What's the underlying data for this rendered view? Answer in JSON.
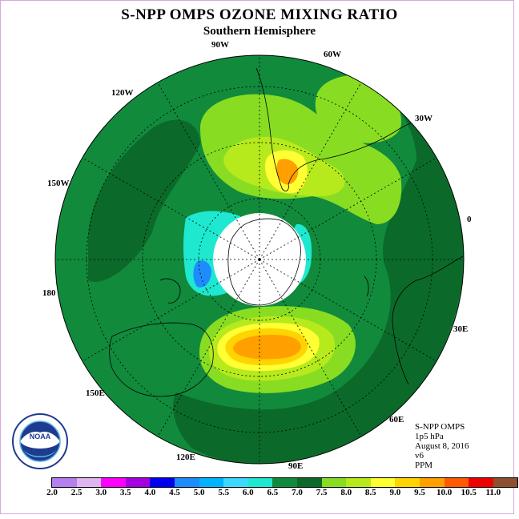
{
  "title": "S-NPP OMPS OZONE MIXING RATIO",
  "subtitle": "Southern Hemisphere",
  "logo": {
    "text": "NOAA",
    "ring_text": "NATIONAL OCEANIC AND ATMOSPHERIC ADMINISTRATION · U.S. DEPARTMENT OF COMMERCE"
  },
  "info": {
    "instrument": "S-NPP OMPS",
    "level": "1p5 hPa",
    "date": "August 8, 2016",
    "version": "v6",
    "unit": "PPM"
  },
  "longitude_labels": {
    "lon_90w": "90W",
    "lon_60w": "60W",
    "lon_30w": "30W",
    "lon_120w": "120W",
    "lon_150w": "150W",
    "lon_0": "0",
    "lon_180": "180",
    "lon_30e": "30E",
    "lon_150e": "150E",
    "lon_60e": "60E",
    "lon_120e": "120E",
    "lon_90e": "90E"
  },
  "colorbar": {
    "ticks": [
      "2.0",
      "2.5",
      "3.0",
      "3.5",
      "4.0",
      "4.5",
      "5.0",
      "5.5",
      "6.0",
      "6.5",
      "7.0",
      "7.5",
      "8.0",
      "8.5",
      "9.0",
      "9.5",
      "10.0",
      "10.5",
      "11.0"
    ],
    "colors": [
      "#b57fef",
      "#e0b6f0",
      "#ff00ff",
      "#a500e0",
      "#0000ee",
      "#1e8cff",
      "#00b4ff",
      "#3cd8ff",
      "#1ee8d0",
      "#118a3c",
      "#0b6a2a",
      "#88dd22",
      "#b6ea1c",
      "#ffff33",
      "#ffd400",
      "#ffa000",
      "#ff5a00",
      "#ee0000",
      "#8c5030"
    ]
  },
  "map_colors": {
    "ocean_base": "#118a3c",
    "dark_band": "#0b6a2a",
    "light_green": "#88dd22",
    "yellow_green": "#b6ea1c",
    "yellow": "#ffff33",
    "orange": "#ffa000",
    "cyan": "#1ee8d0",
    "blue": "#1e8cff"
  }
}
